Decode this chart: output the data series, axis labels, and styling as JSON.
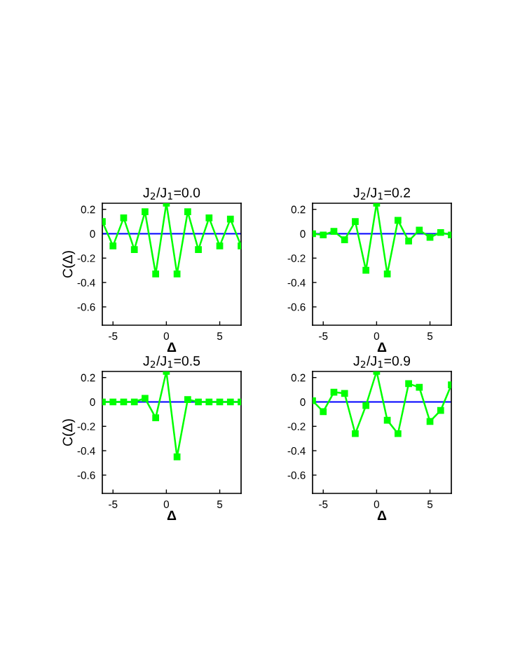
{
  "chart_data": [
    {
      "type": "line",
      "title": "J$_{2}$/J$_{1}$=0.0",
      "xlabel": "Δ",
      "ylabel": "C(Δ)",
      "x": [
        -6,
        -5,
        -4,
        -3,
        -2,
        -1,
        0,
        1,
        2,
        3,
        4,
        5,
        6,
        7
      ],
      "series": [
        {
          "color": "#00ff00",
          "values": [
            0.1,
            -0.1,
            0.13,
            -0.13,
            0.18,
            -0.33,
            0.25,
            -0.33,
            0.18,
            -0.13,
            0.13,
            -0.1,
            0.12,
            -0.1
          ]
        }
      ],
      "xlim": [
        -6,
        7
      ],
      "ylim": [
        -0.75,
        0.25
      ],
      "xticks": [
        -5,
        0,
        5
      ],
      "yticks": [
        -0.6,
        -0.4,
        -0.2,
        0,
        0.2
      ],
      "ref_lines": [
        {
          "axis": "y",
          "value": 0,
          "color": "#0000ff"
        }
      ],
      "marker": "square",
      "grid": false,
      "legend": false
    },
    {
      "type": "line",
      "title": "J$_{2}$/J$_{1}$=0.2",
      "xlabel": "Δ",
      "x": [
        -6,
        -5,
        -4,
        -3,
        -2,
        -1,
        0,
        1,
        2,
        3,
        4,
        5,
        6,
        7
      ],
      "series": [
        {
          "color": "#00ff00",
          "values": [
            0,
            -0.01,
            0.02,
            -0.05,
            0.1,
            -0.3,
            0.25,
            -0.33,
            0.11,
            -0.06,
            0.03,
            -0.03,
            0.01,
            -0.01
          ]
        }
      ],
      "xlim": [
        -6,
        7
      ],
      "ylim": [
        -0.75,
        0.25
      ],
      "xticks": [
        -5,
        0,
        5
      ],
      "yticks": [
        -0.6,
        -0.4,
        -0.2,
        0,
        0.2
      ],
      "ref_lines": [
        {
          "axis": "y",
          "value": 0,
          "color": "#0000ff"
        }
      ],
      "marker": "square",
      "grid": false,
      "legend": false
    },
    {
      "type": "line",
      "title": "J$_{2}$/J$_{1}$=0.5",
      "xlabel": "Δ",
      "ylabel": "C(Δ)",
      "x": [
        -6,
        -5,
        -4,
        -3,
        -2,
        -1,
        0,
        1,
        2,
        3,
        4,
        5,
        6,
        7
      ],
      "series": [
        {
          "color": "#00ff00",
          "values": [
            0,
            0,
            0,
            0,
            0.03,
            -0.13,
            0.25,
            -0.45,
            0.02,
            0,
            0,
            0,
            0,
            0
          ]
        }
      ],
      "xlim": [
        -6,
        7
      ],
      "ylim": [
        -0.75,
        0.25
      ],
      "xticks": [
        -5,
        0,
        5
      ],
      "yticks": [
        -0.6,
        -0.4,
        -0.2,
        0,
        0.2
      ],
      "ref_lines": [
        {
          "axis": "y",
          "value": 0,
          "color": "#0000ff"
        }
      ],
      "marker": "square",
      "grid": false,
      "legend": false
    },
    {
      "type": "line",
      "title": "J$_{2}$/J$_{1}$=0.9",
      "xlabel": "Δ",
      "x": [
        -6,
        -5,
        -4,
        -3,
        -2,
        -1,
        0,
        1,
        2,
        3,
        4,
        5,
        6,
        7
      ],
      "series": [
        {
          "color": "#00ff00",
          "values": [
            0.01,
            -0.08,
            0.08,
            0.07,
            -0.26,
            -0.03,
            0.25,
            -0.15,
            -0.26,
            0.15,
            0.12,
            -0.16,
            -0.07,
            0.14
          ]
        }
      ],
      "xlim": [
        -6,
        7
      ],
      "ylim": [
        -0.75,
        0.25
      ],
      "xticks": [
        -5,
        0,
        5
      ],
      "yticks": [
        -0.6,
        -0.4,
        -0.2,
        0,
        0.2
      ],
      "ref_lines": [
        {
          "axis": "y",
          "value": 0,
          "color": "#0000ff"
        }
      ],
      "marker": "square",
      "grid": false,
      "legend": false
    }
  ]
}
